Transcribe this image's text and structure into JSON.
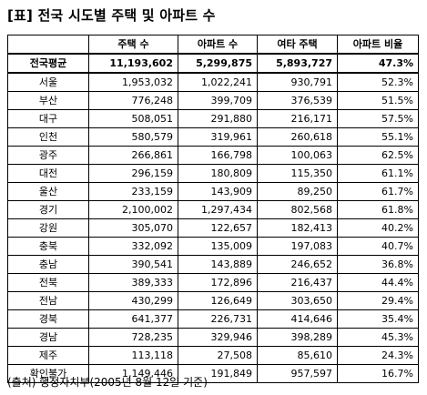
{
  "title": "[표] 전국 시도별 주택 및 아파트 수",
  "columns": [
    "",
    "주택 수",
    "아파트 수",
    "여타 주택",
    "아파트 비율"
  ],
  "average_row": {
    "region": "전국평균",
    "houses": "11,193,602",
    "apartments": "5,299,875",
    "other": "5,893,727",
    "ratio": "47.3%"
  },
  "rows": [
    {
      "region": "서울",
      "houses": "1,953,032",
      "apartments": "1,022,241",
      "other": "930,791",
      "ratio": "52.3%"
    },
    {
      "region": "부산",
      "houses": "776,248",
      "apartments": "399,709",
      "other": "376,539",
      "ratio": "51.5%"
    },
    {
      "region": "대구",
      "houses": "508,051",
      "apartments": "291,880",
      "other": "216,171",
      "ratio": "57.5%"
    },
    {
      "region": "인천",
      "houses": "580,579",
      "apartments": "319,961",
      "other": "260,618",
      "ratio": "55.1%"
    },
    {
      "region": "광주",
      "houses": "266,861",
      "apartments": "166,798",
      "other": "100,063",
      "ratio": "62.5%"
    },
    {
      "region": "대전",
      "houses": "296,159",
      "apartments": "180,809",
      "other": "115,350",
      "ratio": "61.1%"
    },
    {
      "region": "울산",
      "houses": "233,159",
      "apartments": "143,909",
      "other": "89,250",
      "ratio": "61.7%"
    },
    {
      "region": "경기",
      "houses": "2,100,002",
      "apartments": "1,297,434",
      "other": "802,568",
      "ratio": "61.8%"
    },
    {
      "region": "강원",
      "houses": "305,070",
      "apartments": "122,657",
      "other": "182,413",
      "ratio": "40.2%"
    },
    {
      "region": "충북",
      "houses": "332,092",
      "apartments": "135,009",
      "other": "197,083",
      "ratio": "40.7%"
    },
    {
      "region": "충남",
      "houses": "390,541",
      "apartments": "143,889",
      "other": "246,652",
      "ratio": "36.8%"
    },
    {
      "region": "전북",
      "houses": "389,333",
      "apartments": "172,896",
      "other": "216,437",
      "ratio": "44.4%"
    },
    {
      "region": "전남",
      "houses": "430,299",
      "apartments": "126,649",
      "other": "303,650",
      "ratio": "29.4%"
    },
    {
      "region": "경북",
      "houses": "641,377",
      "apartments": "226,731",
      "other": "414,646",
      "ratio": "35.4%"
    },
    {
      "region": "경남",
      "houses": "728,235",
      "apartments": "329,946",
      "other": "398,289",
      "ratio": "45.3%"
    },
    {
      "region": "제주",
      "houses": "113,118",
      "apartments": "27,508",
      "other": "85,610",
      "ratio": "24.3%"
    },
    {
      "region": "확인불가",
      "houses": "1,149,446",
      "apartments": "191,849",
      "other": "957,597",
      "ratio": "16.7%"
    }
  ],
  "source": "(출처) 행정자치부(2005년 8월 12일 기준)"
}
